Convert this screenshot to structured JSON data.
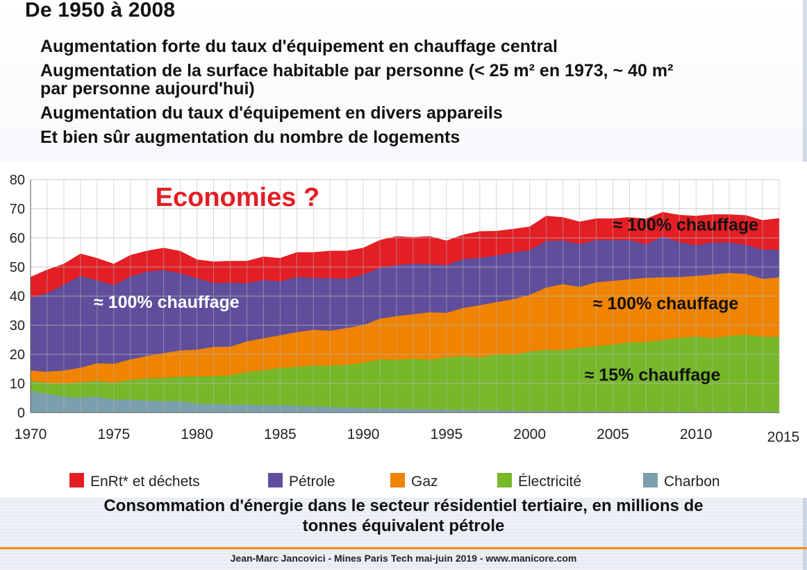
{
  "slide": {
    "title": "De 1950 à 2008",
    "bullets": [
      {
        "lines": [
          "Augmentation forte du taux d'équipement en chauffage central"
        ]
      },
      {
        "lines": [
          "Augmentation de la surface habitable par personne (< 25 m² en 1973, ~ 40 m²",
          "par personne aujourd'hui)"
        ]
      },
      {
        "lines": [
          "Augmentation du taux d'équipement en divers appareils"
        ]
      },
      {
        "lines": [
          "Et bien sûr augmentation du nombre de logements"
        ]
      }
    ],
    "caption_lines": [
      "Consommation d'énergie dans le secteur résidentiel tertiaire, en millions de",
      "tonnes équivalent pétrole"
    ],
    "footer": "Jean-Marc Jancovici - Mines Paris Tech mai-juin 2019 - www.manicore.com",
    "accent_color": "#f28c00"
  },
  "chart_data": {
    "type": "area",
    "stacked": true,
    "x": [
      1970,
      1971,
      1972,
      1973,
      1974,
      1975,
      1976,
      1977,
      1978,
      1979,
      1980,
      1981,
      1982,
      1983,
      1984,
      1985,
      1986,
      1987,
      1988,
      1989,
      1990,
      1991,
      1992,
      1993,
      1994,
      1995,
      1996,
      1997,
      1998,
      1999,
      2000,
      2001,
      2002,
      2003,
      2004,
      2005,
      2006,
      2007,
      2008,
      2009,
      2010,
      2011,
      2012,
      2013,
      2014,
      2015
    ],
    "xticks": [
      1970,
      1975,
      1980,
      1985,
      1990,
      1995,
      2000,
      2005,
      2010,
      2015
    ],
    "ylim": [
      0,
      80
    ],
    "yticks": [
      0,
      10,
      20,
      30,
      40,
      50,
      60,
      70,
      80
    ],
    "grid": true,
    "legend_position": "bottom",
    "series": [
      {
        "name": "Charbon",
        "color": "#7ba0ac",
        "values": [
          7.5,
          6.5,
          5.5,
          5.2,
          5.5,
          4.5,
          4.5,
          4.2,
          4.0,
          4.0,
          3.2,
          3.0,
          2.8,
          2.8,
          2.6,
          2.6,
          2.4,
          2.2,
          2.0,
          1.8,
          1.6,
          1.5,
          1.4,
          1.3,
          1.2,
          1.1,
          1.0,
          0.9,
          0.8,
          0.7,
          0.6,
          0.6,
          0.5,
          0.5,
          0.5,
          0.4,
          0.4,
          0.4,
          0.4,
          0.3,
          0.3,
          0.3,
          0.3,
          0.3,
          0.3,
          0.3
        ]
      },
      {
        "name": "Électricité",
        "color": "#76b82a",
        "values": [
          3.5,
          3.8,
          4.5,
          5.3,
          5.5,
          5.8,
          6.8,
          7.6,
          8.0,
          8.4,
          9.3,
          9.6,
          10.0,
          11.2,
          12.0,
          12.8,
          13.4,
          14.0,
          14.2,
          14.7,
          15.5,
          16.8,
          16.8,
          17.2,
          17.0,
          17.9,
          18.5,
          18.0,
          19.2,
          19.3,
          20.4,
          21.0,
          21.0,
          21.8,
          22.3,
          23.0,
          23.8,
          23.8,
          24.6,
          25.4,
          25.9,
          25.3,
          26.0,
          26.5,
          25.8,
          25.8
        ]
      },
      {
        "name": "Gaz",
        "color": "#f08300",
        "values": [
          3.5,
          3.8,
          4.5,
          5.0,
          6.0,
          6.5,
          7.0,
          7.7,
          8.5,
          9.0,
          9.2,
          10.0,
          9.9,
          10.5,
          11.0,
          11.2,
          11.9,
          12.3,
          12.0,
          12.6,
          13.0,
          14.0,
          15.0,
          15.3,
          16.3,
          15.3,
          16.5,
          18.0,
          18.0,
          19.0,
          19.5,
          21.4,
          22.7,
          20.9,
          22.0,
          21.9,
          21.6,
          22.1,
          21.5,
          20.9,
          20.8,
          21.9,
          21.7,
          20.9,
          19.9,
          20.4
        ]
      },
      {
        "name": "Pétrole",
        "color": "#5e4e9c",
        "values": [
          25.0,
          27.0,
          29.5,
          31.5,
          28.5,
          27.0,
          28.5,
          29.0,
          28.5,
          26.5,
          24.5,
          22.0,
          22.0,
          20.0,
          20.0,
          18.5,
          19.0,
          17.8,
          18.0,
          16.9,
          17.4,
          17.5,
          17.5,
          17.4,
          16.5,
          16.4,
          16.8,
          16.3,
          16.0,
          16.0,
          15.3,
          16.0,
          15.0,
          14.7,
          14.5,
          14.0,
          13.5,
          11.5,
          14.0,
          12.0,
          10.5,
          11.0,
          10.5,
          10.0,
          10.0,
          9.5
        ]
      },
      {
        "name": "EnRt* et déchets",
        "color": "#e31e24",
        "values": [
          7.0,
          7.9,
          7.0,
          7.5,
          7.5,
          7.2,
          7.2,
          7.0,
          7.5,
          7.5,
          6.3,
          7.2,
          7.3,
          7.5,
          7.9,
          7.9,
          8.3,
          8.7,
          9.3,
          9.5,
          9.0,
          9.4,
          9.8,
          9.0,
          9.5,
          8.3,
          8.2,
          9.0,
          8.3,
          8.0,
          8.0,
          8.5,
          7.8,
          7.6,
          7.3,
          7.3,
          7.7,
          8.7,
          8.3,
          9.2,
          10.0,
          9.5,
          9.5,
          10.0,
          10.0,
          10.7
        ]
      }
    ],
    "legend_order": [
      "EnRt* et déchets",
      "Pétrole",
      "Gaz",
      "Électricité",
      "Charbon"
    ],
    "annotations": [
      {
        "text": "Economies ?",
        "color": "#e31e24",
        "style": "large",
        "x": 1977.5,
        "y": 71
      },
      {
        "text": "≈ 100% chauffage",
        "color": "#ffffff",
        "x": 1973.8,
        "y": 36
      },
      {
        "text": "≈ 100% chauffage",
        "color": "#111111",
        "x": 2005,
        "y": 62.5
      },
      {
        "text": "≈ 100% chauffage",
        "color": "#111111",
        "x": 2003.8,
        "y": 35.5
      },
      {
        "text": "≈ 15% chauffage",
        "color": "#111111",
        "x": 2003.3,
        "y": 11
      }
    ]
  }
}
